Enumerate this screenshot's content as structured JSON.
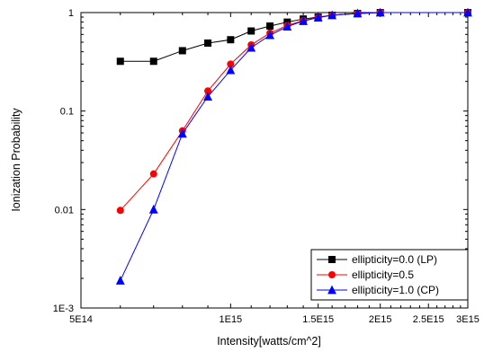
{
  "chart_data": {
    "type": "line",
    "title": "",
    "xlabel": "Intensity[watts/cm^2]",
    "ylabel": "Ionization Probability",
    "xscale": "log",
    "yscale": "log",
    "xlim": [
      500000000000000.0,
      3000000000000000.0
    ],
    "ylim": [
      0.001,
      1
    ],
    "xticks": [
      {
        "value": 500000000000000.0,
        "label": "5E14"
      },
      {
        "value": 1000000000000000.0,
        "label": "1E15"
      },
      {
        "value": 1500000000000000.0,
        "label": "1.5E15"
      },
      {
        "value": 2000000000000000.0,
        "label": "2E15"
      },
      {
        "value": 2500000000000000.0,
        "label": "2.5E15"
      },
      {
        "value": 3000000000000000.0,
        "label": "3E15"
      }
    ],
    "yticks": [
      {
        "value": 0.001,
        "label": "1E-3"
      },
      {
        "value": 0.01,
        "label": "0.01"
      },
      {
        "value": 0.1,
        "label": "0.1"
      },
      {
        "value": 1,
        "label": "1"
      }
    ],
    "x": [
      600000000000000.0,
      700000000000000.0,
      800000000000000.0,
      900000000000000.0,
      1000000000000000.0,
      1100000000000000.0,
      1200000000000000.0,
      1300000000000000.0,
      1400000000000000.0,
      1500000000000000.0,
      1600000000000000.0,
      1800000000000000.0,
      2000000000000000.0,
      3000000000000000.0
    ],
    "series": [
      {
        "name": "ellipticity=0.0 (LP)",
        "color": "#000000",
        "marker": "square",
        "values": [
          0.32,
          0.32,
          0.41,
          0.49,
          0.53,
          0.65,
          0.73,
          0.8,
          0.86,
          0.9,
          0.94,
          0.98,
          1.0,
          1.0
        ]
      },
      {
        "name": "ellipticity=0.5",
        "color": "#ff0000",
        "marker": "circle",
        "values": [
          0.0098,
          0.023,
          0.063,
          0.16,
          0.3,
          0.47,
          0.62,
          0.74,
          0.83,
          0.89,
          0.94,
          0.98,
          1.0,
          1.0
        ]
      },
      {
        "name": "ellipticity=1.0 (CP)",
        "color": "#0000ff",
        "marker": "triangle",
        "values": [
          0.0019,
          0.01,
          0.059,
          0.14,
          0.26,
          0.44,
          0.59,
          0.72,
          0.82,
          0.89,
          0.94,
          0.98,
          1.0,
          1.0
        ]
      }
    ],
    "legend": {
      "position": "bottom-right"
    },
    "grid": false
  }
}
